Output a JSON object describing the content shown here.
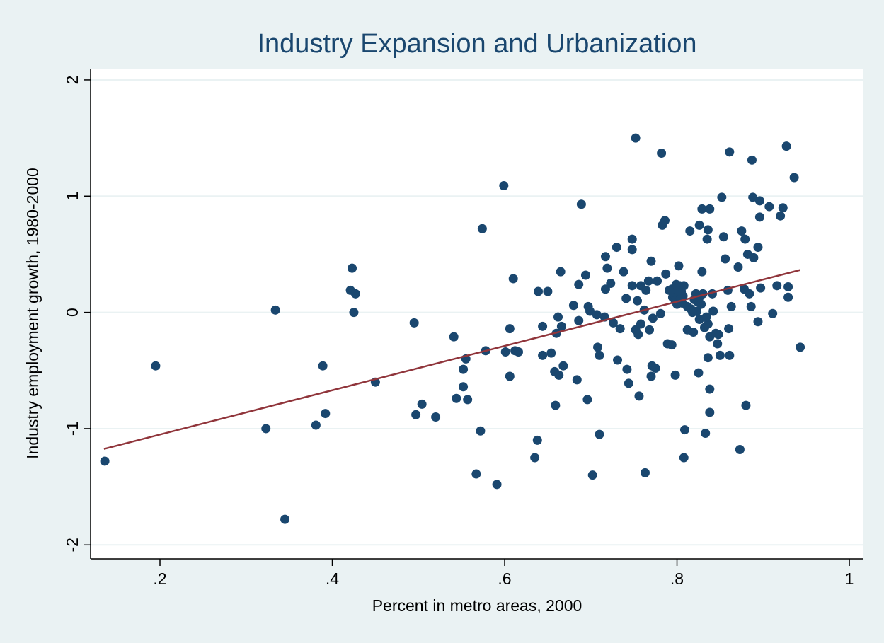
{
  "chart_data": {
    "type": "scatter",
    "title": "Industry Expansion and Urbanization",
    "x_label": "Percent in metro areas, 2000",
    "y_label": "Industry employment growth, 1980-2000",
    "xlim": [
      0.1195,
      1.0164
    ],
    "ylim": [
      -2.12,
      2.097
    ],
    "xticks": [
      {
        "value": 0.2,
        "label": ".2"
      },
      {
        "value": 0.4,
        "label": ".4"
      },
      {
        "value": 0.6,
        "label": ".6"
      },
      {
        "value": 0.8,
        "label": ".8"
      },
      1
    ],
    "yticks": [
      -2,
      -1,
      0,
      1,
      2
    ],
    "grid": true,
    "series": [
      {
        "color": "#1a476f",
        "x": [
          0.136,
          0.195,
          0.323,
          0.334,
          0.345,
          0.381,
          0.389,
          0.392,
          0.421,
          0.423,
          0.427,
          0.425,
          0.45,
          0.495,
          0.497,
          0.504,
          0.52,
          0.541,
          0.544,
          0.552,
          0.552,
          0.555,
          0.557,
          0.567,
          0.572,
          0.574,
          0.578,
          0.591,
          0.599,
          0.601,
          0.606,
          0.606,
          0.61,
          0.612,
          0.616,
          0.635,
          0.638,
          0.639,
          0.644,
          0.644,
          0.65,
          0.654,
          0.658,
          0.659,
          0.66,
          0.662,
          0.663,
          0.665,
          0.666,
          0.668,
          0.68,
          0.684,
          0.686,
          0.686,
          0.689,
          0.694,
          0.696,
          0.697,
          0.699,
          0.702,
          0.707,
          0.708,
          0.71,
          0.71,
          0.716,
          0.717,
          0.717,
          0.719,
          0.723,
          0.726,
          0.73,
          0.731,
          0.734,
          0.738,
          0.741,
          0.742,
          0.744,
          0.748,
          0.748,
          0.748,
          0.752,
          0.752,
          0.754,
          0.755,
          0.756,
          0.758,
          0.758,
          0.762,
          0.763,
          0.764,
          0.767,
          0.768,
          0.77,
          0.77,
          0.771,
          0.772,
          0.775,
          0.777,
          0.781,
          0.782,
          0.783,
          0.786,
          0.787,
          0.789,
          0.791,
          0.794,
          0.795,
          0.797,
          0.798,
          0.799,
          0.8,
          0.802,
          0.803,
          0.805,
          0.807,
          0.808,
          0.808,
          0.809,
          0.812,
          0.815,
          0.819,
          0.822,
          0.823,
          0.825,
          0.826,
          0.827,
          0.829,
          0.829,
          0.832,
          0.833,
          0.835,
          0.836,
          0.836,
          0.836,
          0.838,
          0.838,
          0.838,
          0.838,
          0.841,
          0.842,
          0.848,
          0.85,
          0.852,
          0.854,
          0.856,
          0.859,
          0.86,
          0.861,
          0.861,
          0.863,
          0.871,
          0.873,
          0.875,
          0.878,
          0.879,
          0.88,
          0.882,
          0.884,
          0.886,
          0.887,
          0.888,
          0.889,
          0.894,
          0.894,
          0.896,
          0.896,
          0.897,
          0.907,
          0.911,
          0.916,
          0.92,
          0.923,
          0.927,
          0.929,
          0.929,
          0.936,
          0.943,
          0.796,
          0.798,
          0.801,
          0.804,
          0.794,
          0.803,
          0.799,
          0.806,
          0.812,
          0.816,
          0.82,
          0.824,
          0.828,
          0.83,
          0.834,
          0.826,
          0.818,
          0.845,
          0.847
        ],
        "values": [
          -1.28,
          -0.46,
          -1.0,
          0.02,
          -1.78,
          -0.97,
          -0.46,
          -0.87,
          0.19,
          0.38,
          0.16,
          0.0,
          -0.6,
          -0.09,
          -0.88,
          -0.79,
          -0.9,
          -0.21,
          -0.74,
          -0.49,
          -0.64,
          -0.4,
          -0.75,
          -1.39,
          -1.02,
          0.72,
          -0.33,
          -1.48,
          1.09,
          -0.34,
          -0.14,
          -0.55,
          0.29,
          -0.33,
          -0.34,
          -1.25,
          -1.1,
          0.18,
          -0.12,
          -0.37,
          0.18,
          -0.35,
          -0.51,
          -0.8,
          -0.18,
          -0.04,
          -0.54,
          0.35,
          -0.12,
          -0.46,
          0.06,
          -0.58,
          -0.07,
          0.24,
          0.93,
          0.32,
          -0.75,
          0.05,
          0.01,
          -1.4,
          -0.02,
          -0.3,
          -0.37,
          -1.05,
          -0.04,
          0.48,
          0.2,
          0.38,
          0.25,
          -0.09,
          0.56,
          -0.41,
          -0.14,
          0.35,
          0.12,
          -0.49,
          -0.61,
          0.23,
          0.63,
          0.54,
          1.5,
          -0.15,
          0.1,
          -0.19,
          -0.72,
          0.23,
          -0.1,
          0.02,
          -1.38,
          0.19,
          0.27,
          -0.15,
          0.44,
          -0.55,
          -0.46,
          -0.05,
          -0.48,
          0.27,
          -0.01,
          1.37,
          0.75,
          0.79,
          0.33,
          -0.27,
          0.19,
          -0.28,
          0.13,
          0.2,
          -0.54,
          0.14,
          0.07,
          0.4,
          0.23,
          0.18,
          0.14,
          0.23,
          -1.25,
          -1.01,
          -0.15,
          0.7,
          -0.17,
          0.16,
          0.01,
          -0.52,
          0.75,
          0.14,
          0.35,
          0.89,
          -0.13,
          -1.04,
          0.63,
          0.71,
          -0.1,
          -0.39,
          -0.21,
          0.89,
          -0.66,
          -0.86,
          0.16,
          0.01,
          -0.19,
          -0.37,
          0.99,
          0.65,
          0.46,
          0.19,
          -0.14,
          1.38,
          -0.37,
          0.05,
          0.39,
          -1.18,
          0.7,
          0.2,
          0.63,
          -0.8,
          0.5,
          0.16,
          0.05,
          1.31,
          0.99,
          0.47,
          -0.08,
          0.56,
          0.96,
          0.82,
          0.21,
          0.91,
          -0.01,
          0.23,
          0.83,
          0.9,
          1.43,
          0.22,
          0.13,
          1.16,
          -0.3,
          0.16,
          0.1,
          0.22,
          0.12,
          0.2,
          0.18,
          0.24,
          0.08,
          0.05,
          0.03,
          0.11,
          0.09,
          0.07,
          0.16,
          -0.04,
          -0.06,
          0.0,
          -0.18,
          -0.27
        ]
      },
      {
        "type": "line",
        "color": "#90353b",
        "x": [
          0.135,
          0.943
        ],
        "values": [
          -1.175,
          0.365
        ]
      }
    ]
  }
}
